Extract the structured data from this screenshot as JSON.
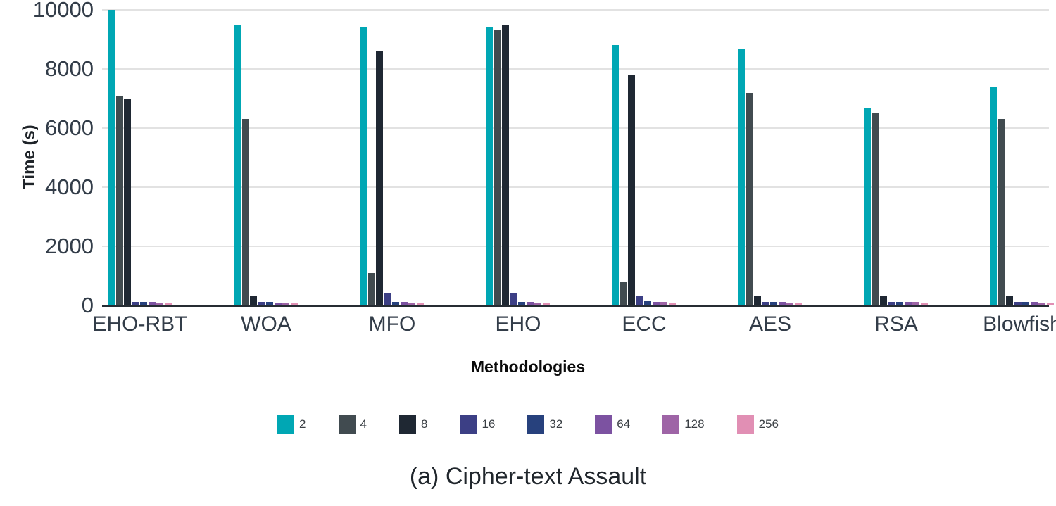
{
  "figure": {
    "caption": "(a) Cipher-text Assault"
  },
  "chart_data": {
    "type": "bar",
    "title": "",
    "xlabel": "Methodologies",
    "ylabel": "Time (s)",
    "ylim": [
      0,
      10000
    ],
    "yticks": [
      0,
      2000,
      4000,
      6000,
      8000,
      10000
    ],
    "grid": true,
    "legend_position": "bottom-center",
    "categories": [
      "EHO-RBT",
      "WOA",
      "MFO",
      "EHO",
      "ECC",
      "AES",
      "RSA",
      "Blowfish"
    ],
    "series": [
      {
        "name": "2",
        "color": "#00a7b4",
        "values": [
          10000,
          9500,
          9400,
          9400,
          8800,
          8700,
          6700,
          7400
        ]
      },
      {
        "name": "4",
        "color": "#414b50",
        "values": [
          7100,
          6300,
          1100,
          9300,
          800,
          7200,
          6500,
          6300
        ]
      },
      {
        "name": "8",
        "color": "#1f2833",
        "values": [
          7000,
          300,
          8600,
          9500,
          7800,
          300,
          300,
          300
        ]
      },
      {
        "name": "16",
        "color": "#3c3f85",
        "values": [
          110,
          120,
          400,
          400,
          300,
          130,
          120,
          130
        ]
      },
      {
        "name": "32",
        "color": "#27417d",
        "values": [
          110,
          110,
          130,
          130,
          160,
          110,
          110,
          110
        ]
      },
      {
        "name": "64",
        "color": "#7c52a1",
        "values": [
          110,
          100,
          110,
          110,
          120,
          110,
          110,
          110
        ]
      },
      {
        "name": "128",
        "color": "#9e64a6",
        "values": [
          100,
          100,
          100,
          100,
          110,
          100,
          110,
          100
        ]
      },
      {
        "name": "256",
        "color": "#e18fb4",
        "values": [
          90,
          80,
          100,
          100,
          100,
          100,
          100,
          90
        ]
      }
    ]
  }
}
